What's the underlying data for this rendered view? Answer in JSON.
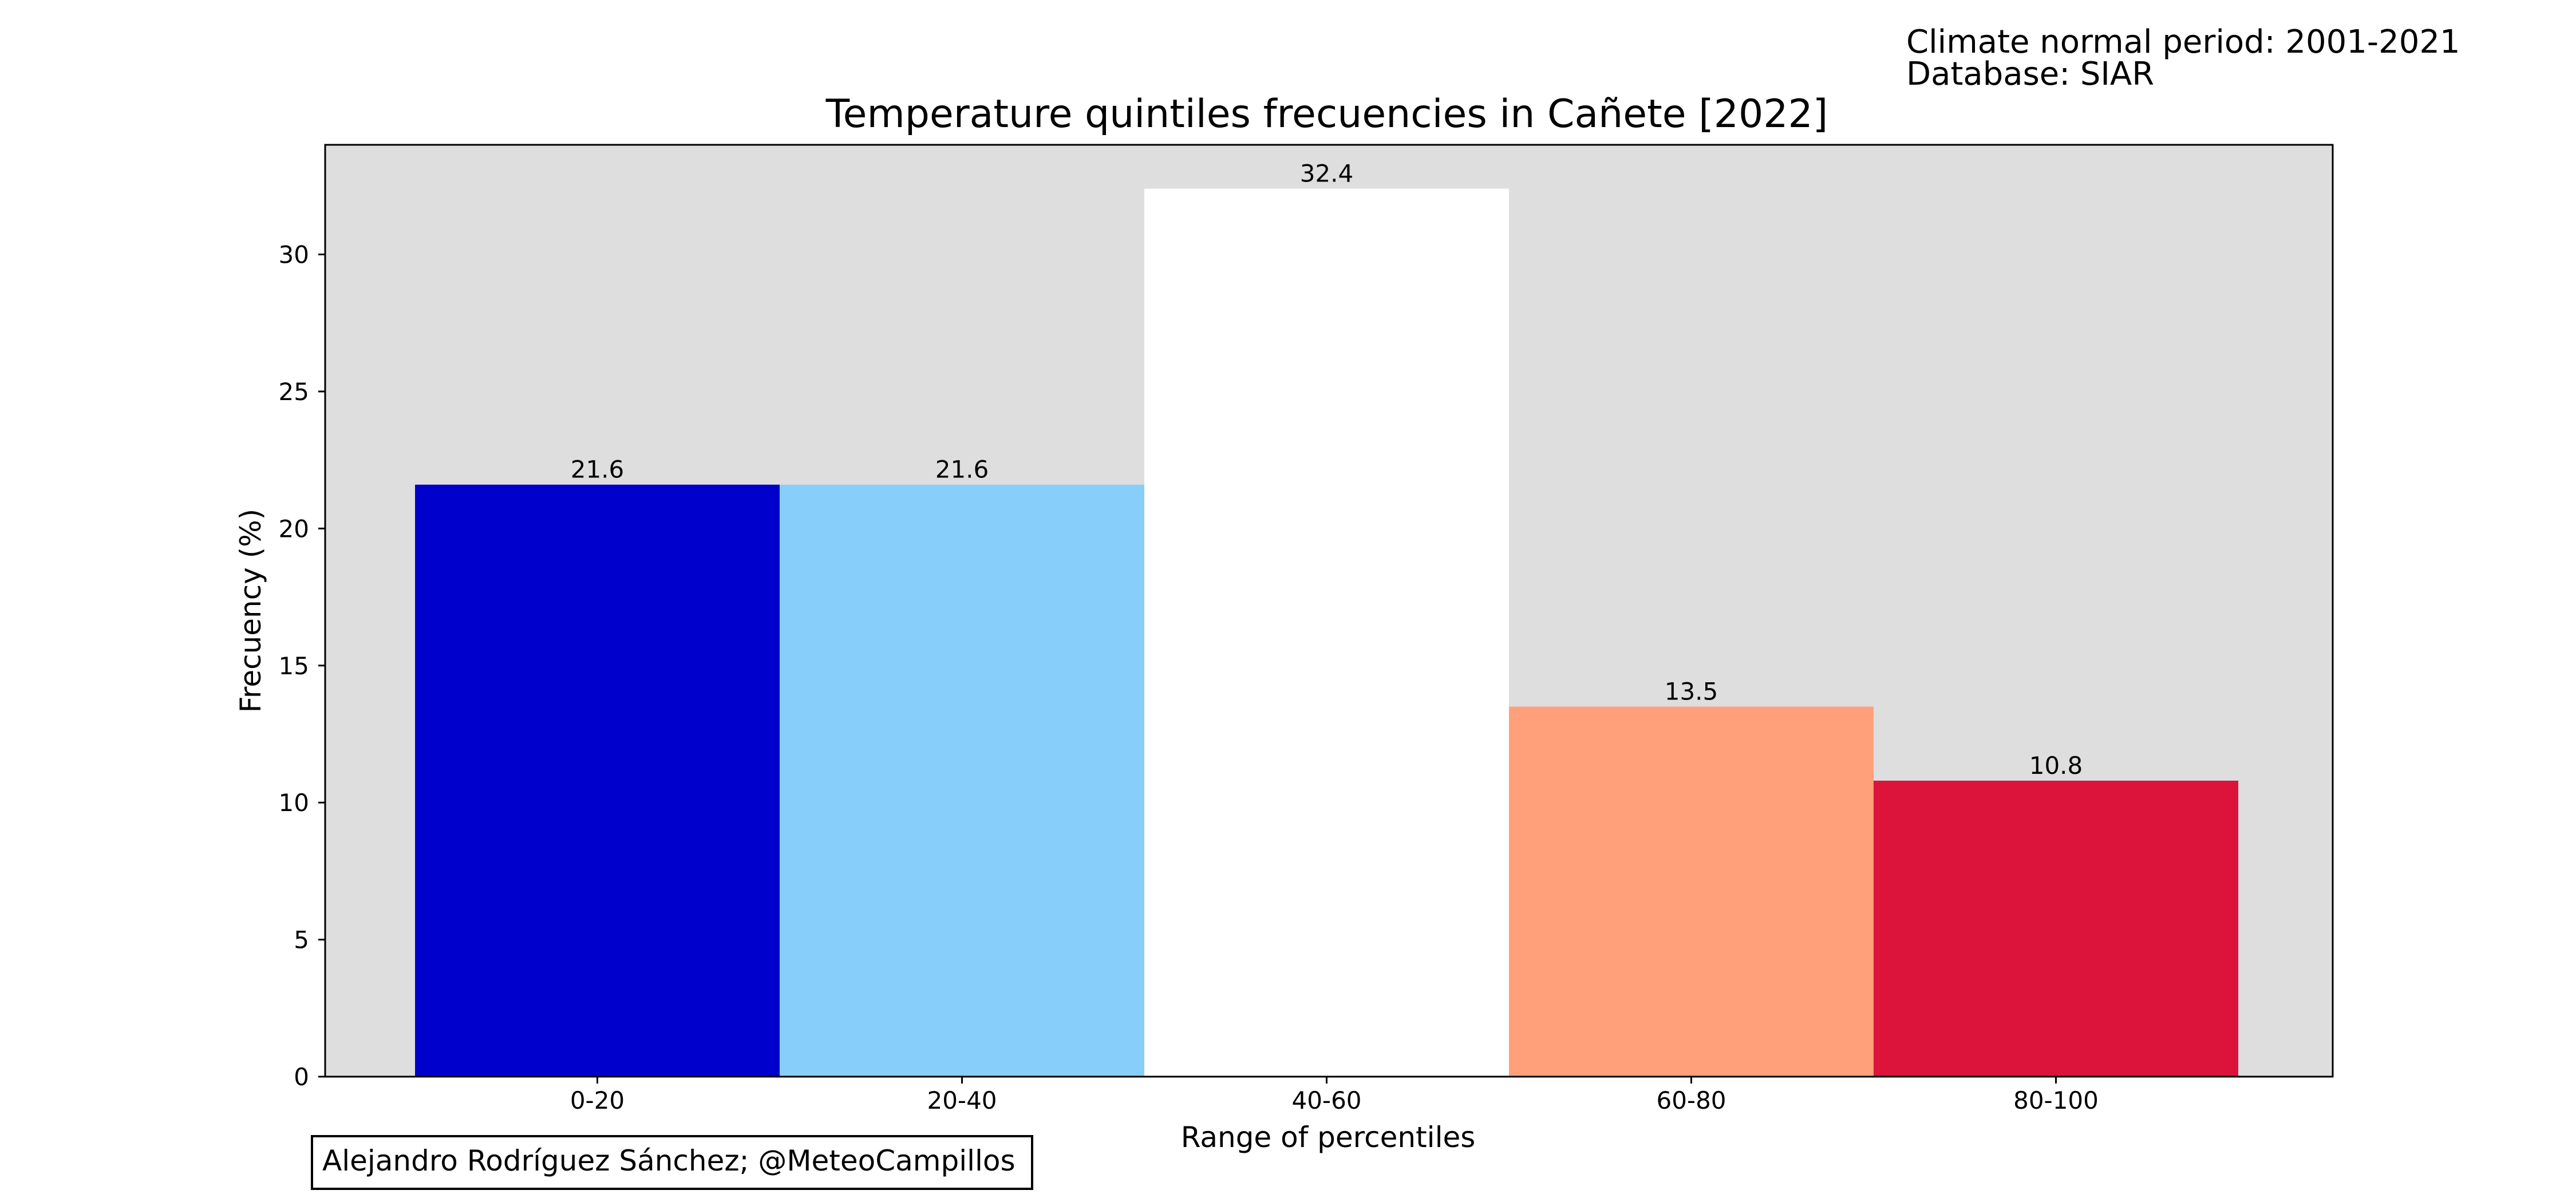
{
  "header": {
    "line1": "Climate normal period: 2001-2021",
    "line2": "Database: SIAR"
  },
  "credit": "Alejandro Rodríguez Sánchez; @MeteoCampillos",
  "colors": {
    "plot_background": "#dedede",
    "bars": [
      "#0000cd",
      "#87cefa",
      "#ffffff",
      "#ffa07a",
      "#dc143c"
    ]
  },
  "chart_data": {
    "type": "bar",
    "title": "Temperature quintiles frecuencies in Cañete [2022]",
    "xlabel": "Range of percentiles",
    "ylabel": "Frecuency (%)",
    "categories": [
      "0-20",
      "20-40",
      "40-60",
      "60-80",
      "80-100"
    ],
    "values": [
      21.6,
      21.6,
      32.4,
      13.5,
      10.8
    ],
    "data_labels": [
      "21.6",
      "21.6",
      "32.4",
      "13.5",
      "10.8"
    ],
    "ylim": [
      0,
      34
    ],
    "yticks": [
      0,
      5,
      10,
      15,
      20,
      25,
      30
    ],
    "grid": false,
    "legend": "none"
  }
}
